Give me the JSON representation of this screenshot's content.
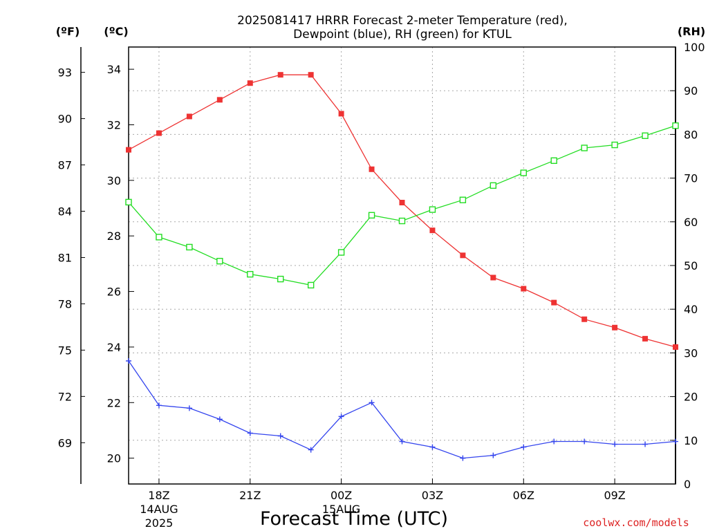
{
  "title_line1": "2025081417 HRRR Forecast 2-meter Temperature (red),",
  "title_line2": "Dewpoint (blue), RH (green) for KTUL",
  "unit_f": "(ºF)",
  "unit_c": "(ºC)",
  "unit_rh": "(RH)",
  "xlabel": "Forecast Time (UTC)",
  "credit": "coolwx.com/models",
  "colors": {
    "temperature": "#ee3333",
    "dewpoint": "#3344ee",
    "rh": "#22dd22",
    "credit": "#dd2222"
  },
  "chart_data": {
    "type": "line",
    "title": "2025081417 HRRR Forecast 2-meter Temperature (red), Dewpoint (blue), RH (green) for KTUL",
    "xlabel": "Forecast Time (UTC)",
    "x": [
      "17Z",
      "18Z",
      "19Z",
      "20Z",
      "21Z",
      "22Z",
      "23Z",
      "00Z",
      "01Z",
      "02Z",
      "03Z",
      "04Z",
      "05Z",
      "06Z",
      "07Z",
      "08Z",
      "09Z",
      "10Z",
      "11Z"
    ],
    "x_hours": [
      0,
      1,
      2,
      3,
      4,
      5,
      6,
      7,
      8,
      9,
      10,
      11,
      12,
      13,
      14,
      15,
      16,
      17,
      18
    ],
    "xlim": [
      0,
      18
    ],
    "x_ticks": [
      {
        "hour": 1,
        "label": "18Z",
        "sub1": "14AUG",
        "sub2": "2025"
      },
      {
        "hour": 4,
        "label": "21Z",
        "sub1": "",
        "sub2": ""
      },
      {
        "hour": 7,
        "label": "00Z",
        "sub1": "15AUG",
        "sub2": ""
      },
      {
        "hour": 10,
        "label": "03Z",
        "sub1": "",
        "sub2": ""
      },
      {
        "hour": 13,
        "label": "06Z",
        "sub1": "",
        "sub2": ""
      },
      {
        "hour": 16,
        "label": "09Z",
        "sub1": "",
        "sub2": ""
      }
    ],
    "y_celsius": {
      "lim": [
        19.07,
        34.8
      ],
      "ticks": [
        20,
        22,
        24,
        26,
        28,
        30,
        32,
        34
      ]
    },
    "y_fahrenheit": {
      "ticks": [
        69,
        72,
        75,
        78,
        81,
        84,
        87,
        90,
        93
      ]
    },
    "y_rh": {
      "lim": [
        0,
        100
      ],
      "ticks": [
        0,
        10,
        20,
        30,
        40,
        50,
        60,
        70,
        80,
        90,
        100
      ]
    },
    "grid": true,
    "series": [
      {
        "key": "temperature",
        "axis": "celsius",
        "marker": "filled-square",
        "values": [
          31.1,
          31.7,
          32.3,
          32.9,
          33.5,
          33.8,
          33.8,
          32.4,
          30.4,
          29.2,
          28.2,
          27.3,
          26.5,
          26.1,
          25.6,
          25.0,
          24.7,
          24.3,
          24.0
        ]
      },
      {
        "key": "dewpoint",
        "axis": "celsius",
        "marker": "plus",
        "values": [
          23.5,
          21.9,
          21.8,
          21.4,
          20.9,
          20.8,
          20.3,
          21.5,
          22.0,
          20.6,
          20.4,
          20.0,
          20.1,
          20.4,
          20.6,
          20.6,
          20.5,
          20.5,
          20.6
        ]
      },
      {
        "key": "rh",
        "axis": "rh",
        "marker": "open-square",
        "values": [
          64.5,
          56.5,
          54.2,
          51.0,
          48.0,
          46.9,
          45.5,
          53.0,
          61.5,
          60.2,
          62.8,
          65.0,
          68.3,
          71.2,
          74.0,
          76.9,
          77.6,
          79.7,
          82.0
        ]
      }
    ]
  }
}
